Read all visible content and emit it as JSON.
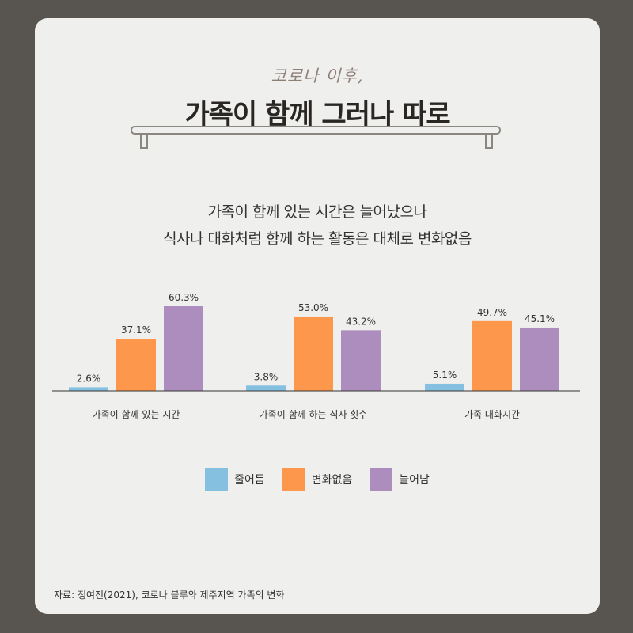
{
  "header": {
    "kicker": "코로나 이후,",
    "title": "가족이 함께 그러나 따로"
  },
  "subtitle": {
    "line1": "가족이 함께 있는 시간은 늘어났으나",
    "line2": "식사나 대화처럼 함께 하는 활동은 대체로 변화없음"
  },
  "chart_data": {
    "type": "bar",
    "title": "",
    "xlabel": "",
    "ylabel": "",
    "ylim": [
      0,
      70
    ],
    "grid": false,
    "legend_position": "bottom-center",
    "categories": [
      "가족이 함께 있는 시간",
      "가족이 함께  하는 식사 횟수",
      "가족 대화시간"
    ],
    "series": [
      {
        "name": "줄어듬",
        "color": "#86c0e0",
        "values": [
          2.6,
          3.8,
          5.1
        ],
        "labels": [
          "2.6%",
          "3.8%",
          "5.1%"
        ]
      },
      {
        "name": "변화없음",
        "color": "#fd974b",
        "values": [
          37.1,
          53.0,
          49.7
        ],
        "labels": [
          "37.1%",
          "53.0%",
          "49.7%"
        ]
      },
      {
        "name": "늘어남",
        "color": "#ad8dbd",
        "values": [
          60.3,
          43.2,
          45.1
        ],
        "labels": [
          "60.3%",
          "43.2%",
          "45.1%"
        ]
      }
    ]
  },
  "source": "자료: 정여진(2021), 코로나 블루와 제주지역 가족의 변화"
}
